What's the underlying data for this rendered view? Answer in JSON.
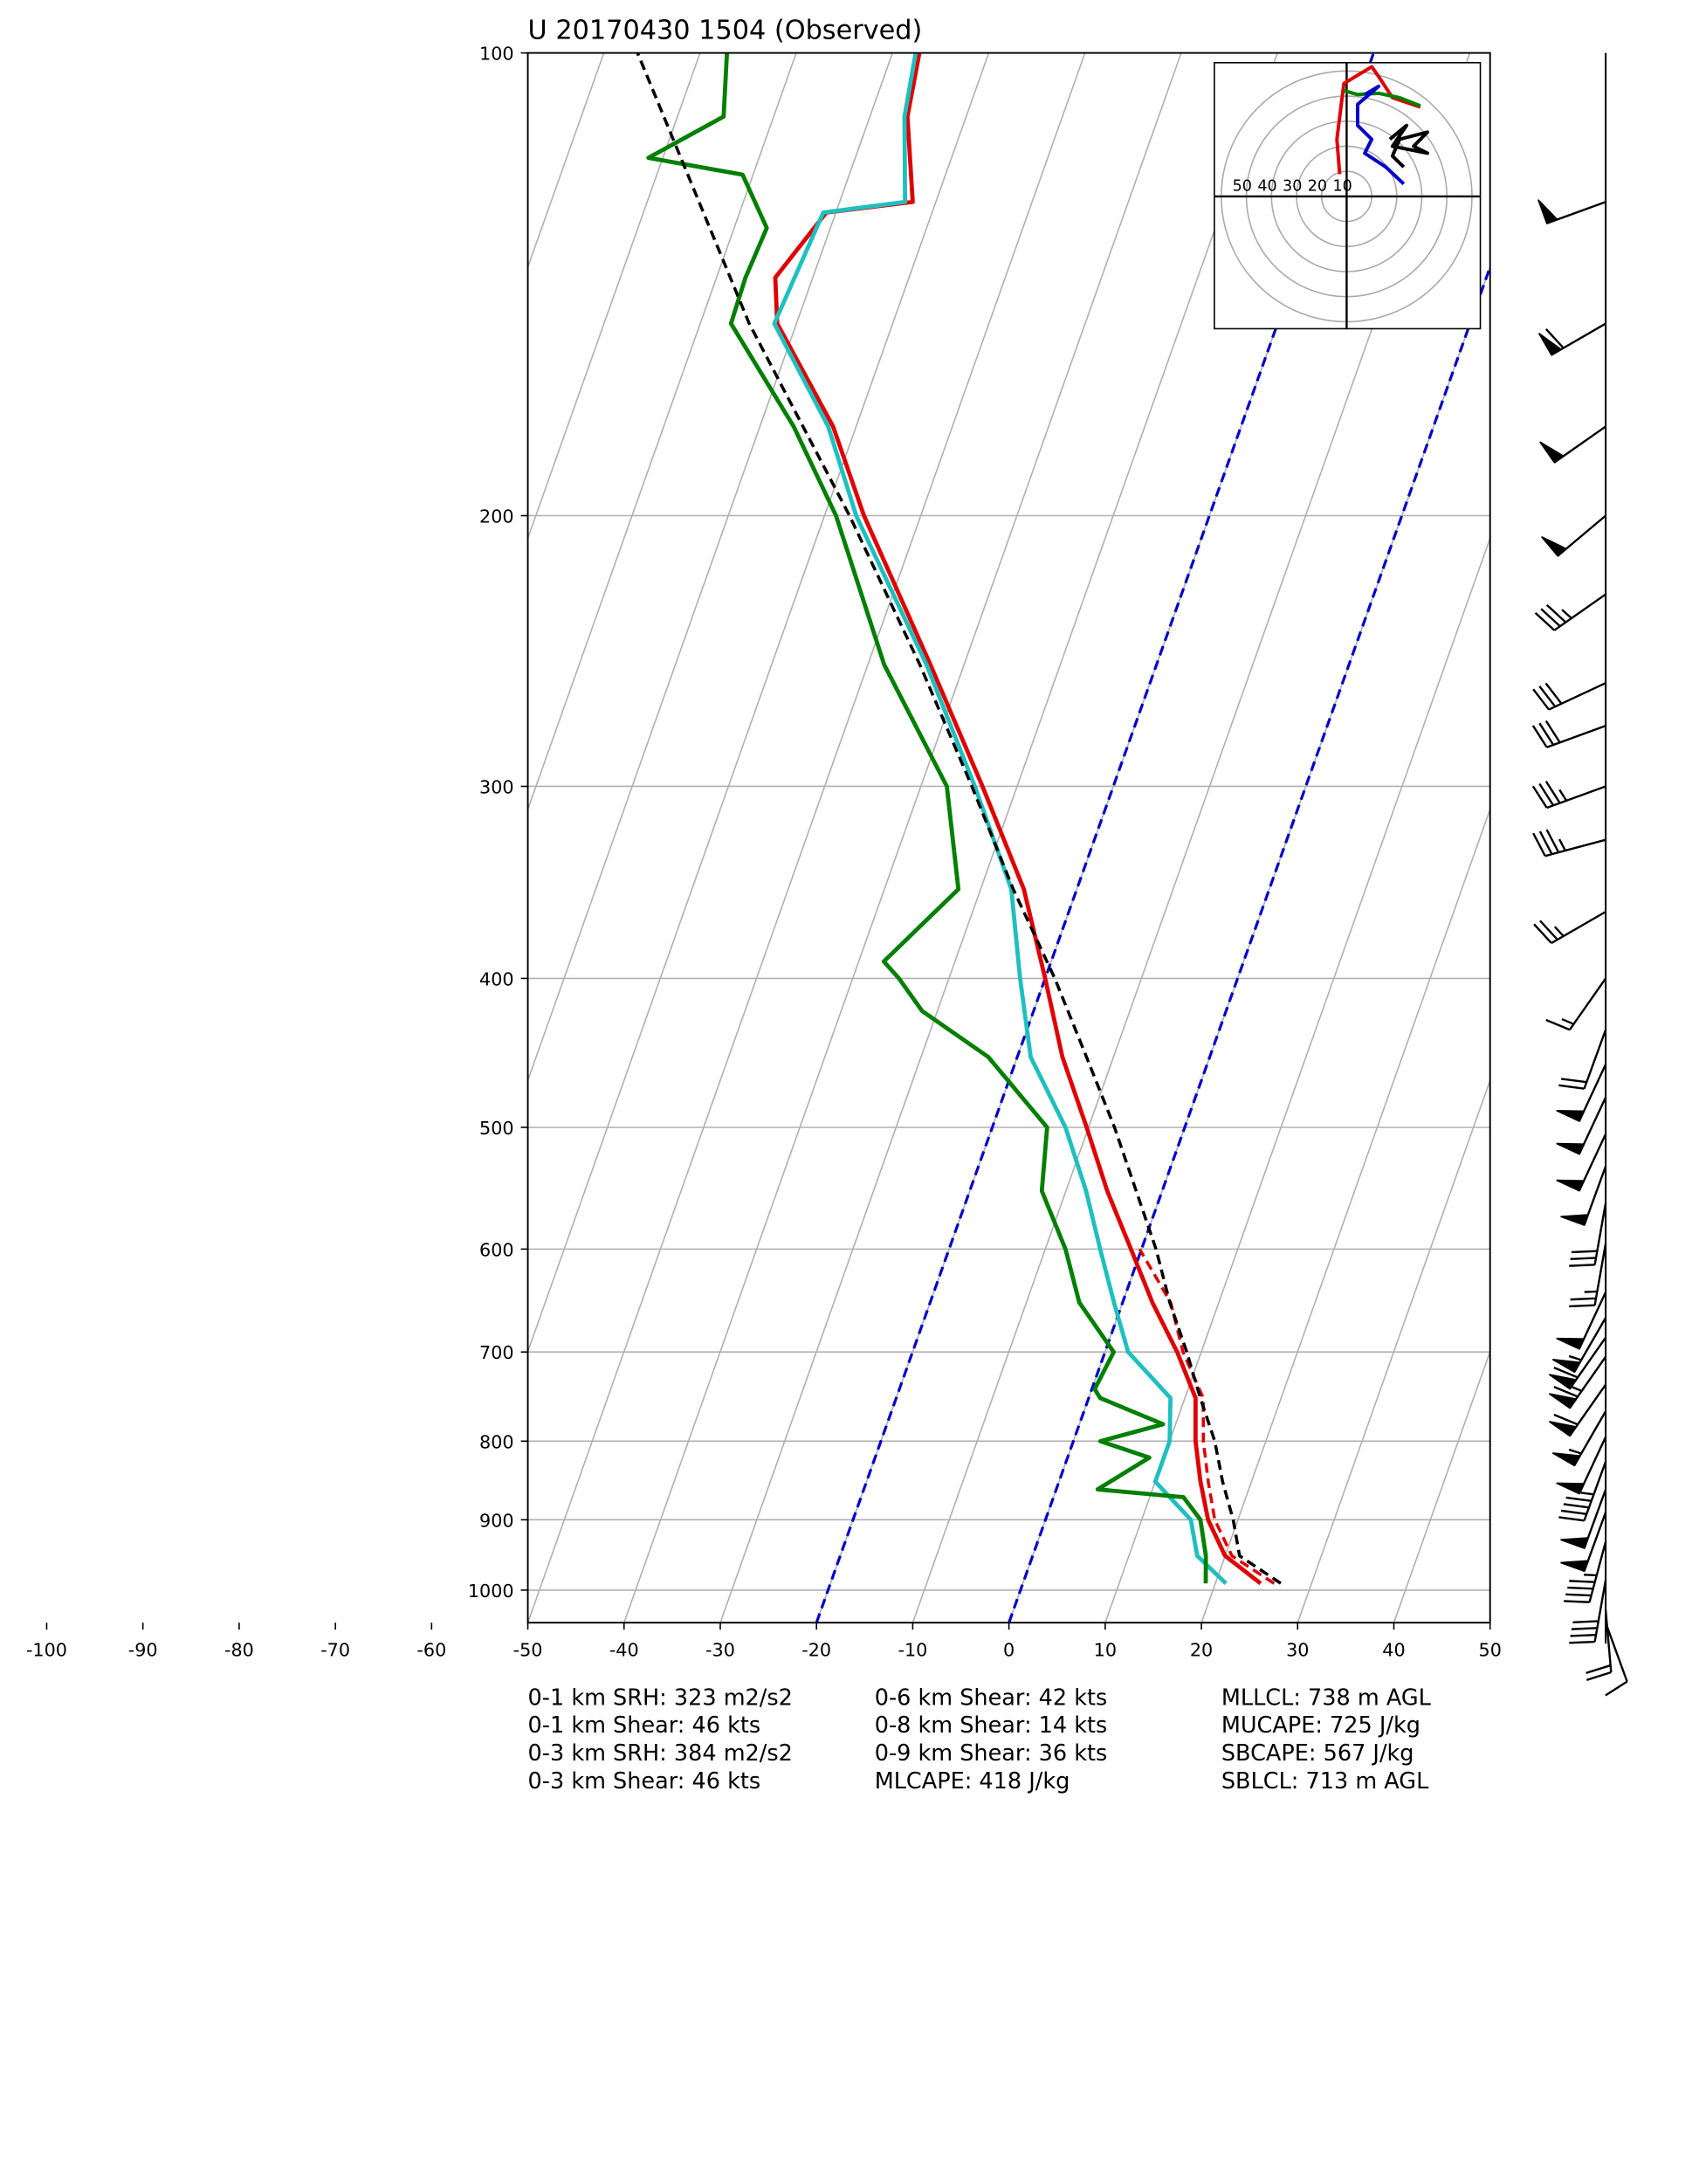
{
  "chart_data": {
    "type": "skewt",
    "title": "U 20170430 1504   (Observed)",
    "xlim": [
      -50,
      50
    ],
    "ylim": [
      1050,
      100
    ],
    "yscale": "log",
    "grid": true,
    "xticks": [
      -100,
      -90,
      -80,
      -70,
      -60,
      -50,
      -40,
      -30,
      -20,
      -10,
      0,
      10,
      20,
      30,
      40,
      50
    ],
    "yticks": [
      100,
      200,
      300,
      400,
      500,
      600,
      700,
      800,
      900,
      1000
    ],
    "highlight_isotherms": [
      -20,
      0
    ],
    "highlight_color": "#0000cc",
    "series": [
      {
        "color": "#e00000",
        "dash": false,
        "x": [
          990,
          950,
          900,
          850,
          800,
          750,
          700,
          650,
          600,
          550,
          500,
          450,
          400,
          350,
          300,
          250,
          200,
          175,
          150,
          140,
          127,
          125,
          110,
          100
        ],
        "values": [
          24.7,
          20.0,
          16.9,
          14.7,
          12.7,
          11.1,
          7.5,
          3.1,
          -1.1,
          -5.7,
          -10.2,
          -15.3,
          -20.0,
          -25.5,
          -33.6,
          -43.5,
          -55.9,
          -62.4,
          -72,
          -73.9,
          -71,
          -62.4,
          -66.1,
          -67.2
        ]
      },
      {
        "color": "#1fbfbf",
        "dash": false,
        "x": [
          990,
          950,
          900,
          850,
          800,
          750,
          700,
          650,
          600,
          550,
          500,
          450,
          400,
          350,
          300,
          250,
          200,
          175,
          150,
          127,
          125,
          110,
          100
        ],
        "values": [
          21.1,
          17.1,
          15.1,
          10,
          10,
          8.5,
          2.4,
          -0.9,
          -4.3,
          -7.9,
          -12.4,
          -18.6,
          -22.6,
          -26.8,
          -34.4,
          -43.9,
          -56.7,
          -62.9,
          -72.3,
          -71.3,
          -63.2,
          -66.4,
          -67.6
        ]
      },
      {
        "color": "#007f00",
        "dash": false,
        "x": [
          990,
          950,
          900,
          870,
          860,
          820,
          800,
          780,
          750,
          740,
          700,
          650,
          600,
          550,
          500,
          450,
          420,
          400,
          390,
          350,
          300,
          250,
          200,
          175,
          150,
          140,
          130,
          120,
          117,
          110,
          100
        ],
        "values": [
          19,
          18,
          16.1,
          13.5,
          4.3,
          8.5,
          2.8,
          8.7,
          1.2,
          0.3,
          0.9,
          -4.5,
          -7.9,
          -12.5,
          -14.3,
          -23,
          -31.6,
          -35.2,
          -37.4,
          -32.3,
          -37.3,
          -48.3,
          -58.8,
          -66.5,
          -76.8,
          -77,
          -76.6,
          -81.1,
          -91.5,
          -85.2,
          -87.2
        ]
      },
      {
        "color": "#e00000",
        "dash": true,
        "x": [
          990,
          950,
          900,
          850,
          800,
          750,
          700,
          650,
          600
        ],
        "values": [
          26.1,
          20.7,
          17.6,
          15.5,
          13.5,
          11.9,
          8.1,
          5,
          -0.2
        ]
      },
      {
        "color": "#000000",
        "dash": true,
        "x": [
          990,
          950,
          900,
          850,
          800,
          750,
          700,
          650,
          600,
          550,
          500,
          450,
          400,
          350,
          300,
          250,
          200,
          150,
          100
        ],
        "values": [
          26.8,
          21.5,
          19.5,
          17,
          14.7,
          11.6,
          8.5,
          4.9,
          1.5,
          -2.7,
          -7.3,
          -12.8,
          -19,
          -26.6,
          -34.7,
          -44.6,
          -57.4,
          -74.9,
          -96.5
        ]
      }
    ],
    "wind": {
      "pressure": [
        125,
        150,
        175,
        200,
        225,
        257,
        274,
        300,
        325,
        362,
        400,
        432,
        455,
        478,
        505,
        530,
        560,
        595,
        640,
        665,
        685,
        705,
        735,
        765,
        795,
        825,
        860,
        890,
        930,
        985,
        1030,
        1050
      ],
      "speed": [
        50,
        60,
        50,
        50,
        35,
        30,
        30,
        35,
        35,
        25,
        15,
        20,
        50,
        50,
        50,
        50,
        30,
        25,
        50,
        55,
        60,
        65,
        60,
        55,
        50,
        45,
        50,
        50,
        45,
        40,
        20,
        10
      ],
      "direction": [
        250,
        240,
        235,
        230,
        235,
        245,
        250,
        250,
        255,
        240,
        215,
        200,
        205,
        205,
        205,
        200,
        190,
        190,
        205,
        210,
        215,
        215,
        215,
        210,
        205,
        200,
        200,
        200,
        195,
        190,
        175,
        160
      ]
    },
    "hodograph": {
      "rings": [
        50,
        40,
        30,
        20,
        10
      ],
      "lines": [
        {
          "color": "#e00000",
          "u": [
            -2.8,
            -3.9,
            -1.1,
            10,
            12.8,
            18.3,
            29.4
          ],
          "v": [
            8.9,
            22.8,
            45,
            51.7,
            47.8,
            39.4,
            35.6
          ]
        },
        {
          "color": "#007f00",
          "u": [
            -1.1,
            4.4,
            12.8,
            21.1,
            29.4
          ],
          "v": [
            42.2,
            40.6,
            41.1,
            39.4,
            36.1
          ]
        },
        {
          "color": "#0000cc",
          "u": [
            7.2,
            12.8,
            4.4,
            4.4,
            10,
            7.2,
            15.6,
            22.8
          ],
          "v": [
            40.6,
            43.9,
            36.7,
            28.3,
            22.8,
            17.2,
            11.7,
            5
          ]
        },
        {
          "color": "#000000",
          "u": [
            22.8,
            18.3,
            21.1,
            32.2,
            26.7,
            32.2,
            18.3,
            23.9,
            17.2
          ],
          "v": [
            11.7,
            16.1,
            22.8,
            25.6,
            20,
            17.2,
            20,
            28.3,
            22.8
          ]
        }
      ]
    },
    "stats": [
      [
        "0-1 km SRH: 323 m2/s2",
        "0-1 km Shear: 46 kts",
        "0-3 km SRH: 384 m2/s2",
        "0-3 km Shear: 46 kts"
      ],
      [
        "0-6 km Shear: 42 kts",
        "0-8 km Shear: 14 kts",
        "0-9 km Shear: 36 kts",
        "MLCAPE: 418 J/kg"
      ],
      [
        "MLLCL: 738 m AGL",
        "MUCAPE: 725 J/kg",
        "SBCAPE: 567 J/kg",
        "SBLCL: 713 m AGL"
      ]
    ]
  }
}
